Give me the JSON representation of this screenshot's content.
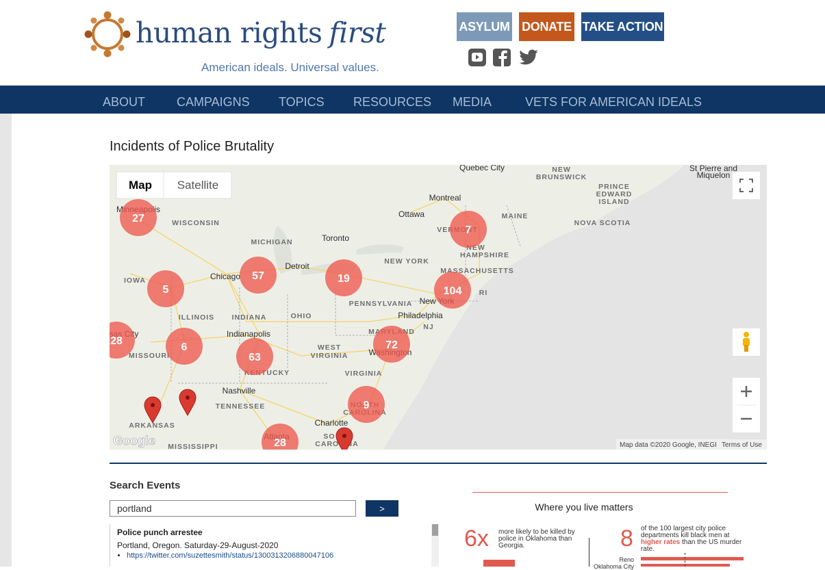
{
  "header": {
    "logo_text": "human rights",
    "logo_emphasis": "first",
    "tagline": "American ideals. Universal values.",
    "buttons": [
      "ASYLUM",
      "DONATE",
      "TAKE ACTION"
    ]
  },
  "nav": [
    "ABOUT",
    "CAMPAIGNS",
    "TOPICS",
    "RESOURCES",
    "MEDIA",
    "VETS FOR AMERICAN IDEALS"
  ],
  "page_title": "Incidents of Police Brutality",
  "map": {
    "tabs": [
      "Map",
      "Satellite"
    ],
    "places": [
      "Quebec City",
      "NEW",
      "BRUNSWICK",
      "St Pierre and",
      "Miquelon",
      "PRINCE",
      "EDWARD",
      "ISLAND",
      "Montreal",
      "Ottawa",
      "Minneapolis",
      "WISCONSIN",
      "MAINE",
      "NOVA SCOTIA",
      "VERMONT",
      "MICHIGAN",
      "Toronto",
      "NEW",
      "HAMPSHIRE",
      "NEW YORK",
      "Detroit",
      "MASSACHUSETTS",
      "Chicago",
      "IOWA",
      "RI",
      "New York",
      "PENNSYLVANIA",
      "ILLINOIS",
      "INDIANA",
      "OHIO",
      "Philadelphia",
      "NJ",
      "sas City",
      "Indianapolis",
      "MARYLAND",
      "WEST",
      "Washington",
      "VIRGINIA",
      "MISSOURI",
      "KENTUCKY",
      "VIRGINIA",
      "Nashville",
      "TENNESSEE",
      "NORTH",
      "CAROLINA",
      "Charlotte",
      "ARKANSAS",
      "Atlanta",
      "SO",
      "CAROLINA",
      "MISSISSIPPI"
    ],
    "clusters": [
      27,
      5,
      57,
      19,
      7,
      104,
      28,
      6,
      63,
      72,
      9,
      28
    ],
    "logo": "Google",
    "attribution": "Map data ©2020 Google, INEGI",
    "terms": "Terms of Use"
  },
  "search": {
    "heading": "Search Events",
    "query": "portland",
    "button": ">",
    "results": [
      {
        "title": "Police punch arrestee",
        "details": "Portland, Oregon. Saturday-29-August-2020",
        "link": "https://twitter.com/suzettesmith/status/1300313206880047106"
      }
    ]
  },
  "infographic": {
    "title": "Where you live matters",
    "stat1": {
      "figure": "6x",
      "text": "more likely to be killed by police in Oklahoma than Georgia."
    },
    "stat2": {
      "figure": "8",
      "text_before": "of the 100 largest city police departments kill black men at",
      "highlight": "higher rates",
      "text_after": "than the US murder rate."
    },
    "cities": [
      "Reno",
      "Oklahoma City"
    ]
  }
}
